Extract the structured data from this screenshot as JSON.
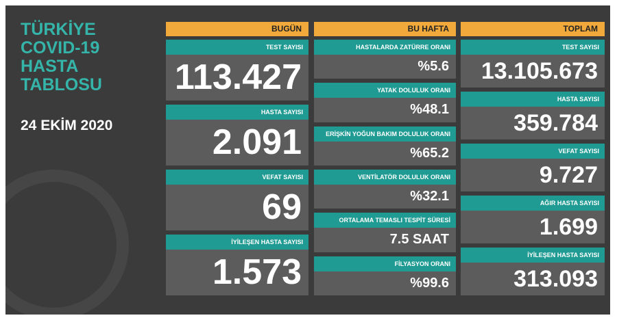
{
  "header": {
    "title_lines": [
      "TÜRKİYE",
      "COVID-19",
      "HASTA",
      "TABLOSU"
    ],
    "date": "24 EKİM 2020"
  },
  "columns": [
    {
      "header": "BUGÜN",
      "cards": [
        {
          "label": "TEST SAYISI",
          "value": "113.427"
        },
        {
          "label": "HASTA SAYISI",
          "value": "2.091"
        },
        {
          "label": "VEFAT SAYISI",
          "value": "69"
        },
        {
          "label": "İYİLEŞEN HASTA SAYISI",
          "value": "1.573"
        }
      ]
    },
    {
      "header": "BU HAFTA",
      "cards": [
        {
          "label": "HASTALARDA ZATÜRRE ORANI",
          "value": "%5.6"
        },
        {
          "label": "YATAK DOLULUK ORANI",
          "value": "%48.1"
        },
        {
          "label": "ERİŞKİN YOĞUN BAKIM DOLULUK ORANI",
          "value": "%65.2"
        },
        {
          "label": "VENTİLATÖR DOLULUK ORANI",
          "value": "%32.1"
        },
        {
          "label": "ORTALAMA TEMASLI TESPİT SÜRESİ",
          "value": "7.5 SAAT"
        },
        {
          "label": "FİLYASYON ORANI",
          "value": "%99.6"
        }
      ]
    },
    {
      "header": "TOPLAM",
      "cards": [
        {
          "label": "TEST SAYISI",
          "value": "13.105.673"
        },
        {
          "label": "HASTA SAYISI",
          "value": "359.784"
        },
        {
          "label": "VEFAT SAYISI",
          "value": "9.727"
        },
        {
          "label": "AĞIR HASTA SAYISI",
          "value": "1.699"
        },
        {
          "label": "İYİLEŞEN HASTA SAYISI",
          "value": "313.093"
        }
      ]
    }
  ]
}
